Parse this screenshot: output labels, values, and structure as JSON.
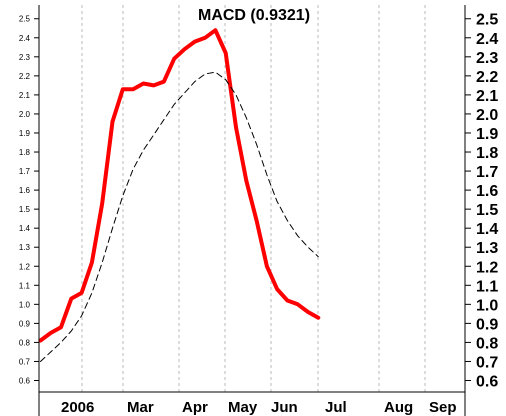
{
  "chart_data": {
    "type": "line",
    "title": "MACD (0.9321)",
    "xlabel": "",
    "ylabel": "",
    "ylim": [
      0.6,
      2.5
    ],
    "y_ticks": [
      "0.6",
      "0.7",
      "0.8",
      "0.9",
      "1.0",
      "1.1",
      "1.2",
      "1.3",
      "1.4",
      "1.5",
      "1.6",
      "1.7",
      "1.8",
      "1.9",
      "2.0",
      "2.1",
      "2.2",
      "2.3",
      "2.4",
      "2.5"
    ],
    "x_ticks": [
      "2006",
      "Mar",
      "Apr",
      "May",
      "Jun",
      "Jul",
      "Aug",
      "Sep"
    ],
    "grid": {
      "vertical": true,
      "horizontal": false
    },
    "series": [
      {
        "color": "#ff0000",
        "style": "solid",
        "x": [
          "2006-01-03",
          "2006-01-10",
          "2006-01-17",
          "2006-01-24",
          "2006-01-31",
          "2006-02-07",
          "2006-02-14",
          "2006-02-21",
          "2006-02-28",
          "2006-03-07",
          "2006-03-14",
          "2006-03-21",
          "2006-03-28",
          "2006-04-04",
          "2006-04-11",
          "2006-04-18",
          "2006-04-25",
          "2006-05-02",
          "2006-05-09",
          "2006-05-16",
          "2006-05-23",
          "2006-05-30",
          "2006-06-06",
          "2006-06-13",
          "2006-06-20",
          "2006-06-27",
          "2006-07-04",
          "2006-07-11"
        ],
        "values": [
          0.81,
          0.85,
          0.88,
          1.03,
          1.06,
          1.22,
          1.53,
          1.96,
          2.13,
          2.13,
          2.16,
          2.15,
          2.17,
          2.29,
          2.34,
          2.38,
          2.4,
          2.44,
          2.32,
          1.93,
          1.65,
          1.44,
          1.2,
          1.08,
          1.02,
          1.0,
          0.96,
          0.93
        ]
      },
      {
        "color": "#000000",
        "style": "dashed",
        "x": [
          "2006-01-03",
          "2006-01-10",
          "2006-01-17",
          "2006-01-24",
          "2006-01-31",
          "2006-02-07",
          "2006-02-14",
          "2006-02-21",
          "2006-02-28",
          "2006-03-07",
          "2006-03-14",
          "2006-03-21",
          "2006-03-28",
          "2006-04-04",
          "2006-04-11",
          "2006-04-18",
          "2006-04-25",
          "2006-05-02",
          "2006-05-09",
          "2006-05-16",
          "2006-05-23",
          "2006-05-30",
          "2006-06-06",
          "2006-06-13",
          "2006-06-20",
          "2006-06-27",
          "2006-07-04",
          "2006-07-11"
        ],
        "values": [
          0.7,
          0.75,
          0.8,
          0.86,
          0.94,
          1.06,
          1.22,
          1.4,
          1.57,
          1.71,
          1.81,
          1.89,
          1.97,
          2.05,
          2.11,
          2.17,
          2.21,
          2.22,
          2.18,
          2.1,
          1.98,
          1.84,
          1.68,
          1.54,
          1.44,
          1.36,
          1.3,
          1.25
        ]
      }
    ]
  }
}
